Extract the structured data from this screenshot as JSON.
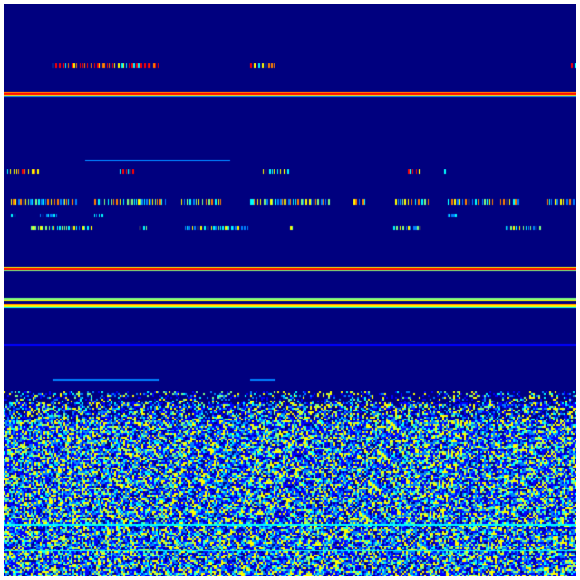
{
  "image": {
    "kind": "spectrogram heatmap",
    "colormap": "jet",
    "colors": {
      "background": "#00007f",
      "low": "#0000ff",
      "mid_low": "#0080ff",
      "mid": "#00ffff",
      "mid_high": "#80ff80",
      "high": "#ffff00",
      "higher": "#ff8000",
      "max": "#ff0000",
      "border": "#ffffff"
    }
  }
}
